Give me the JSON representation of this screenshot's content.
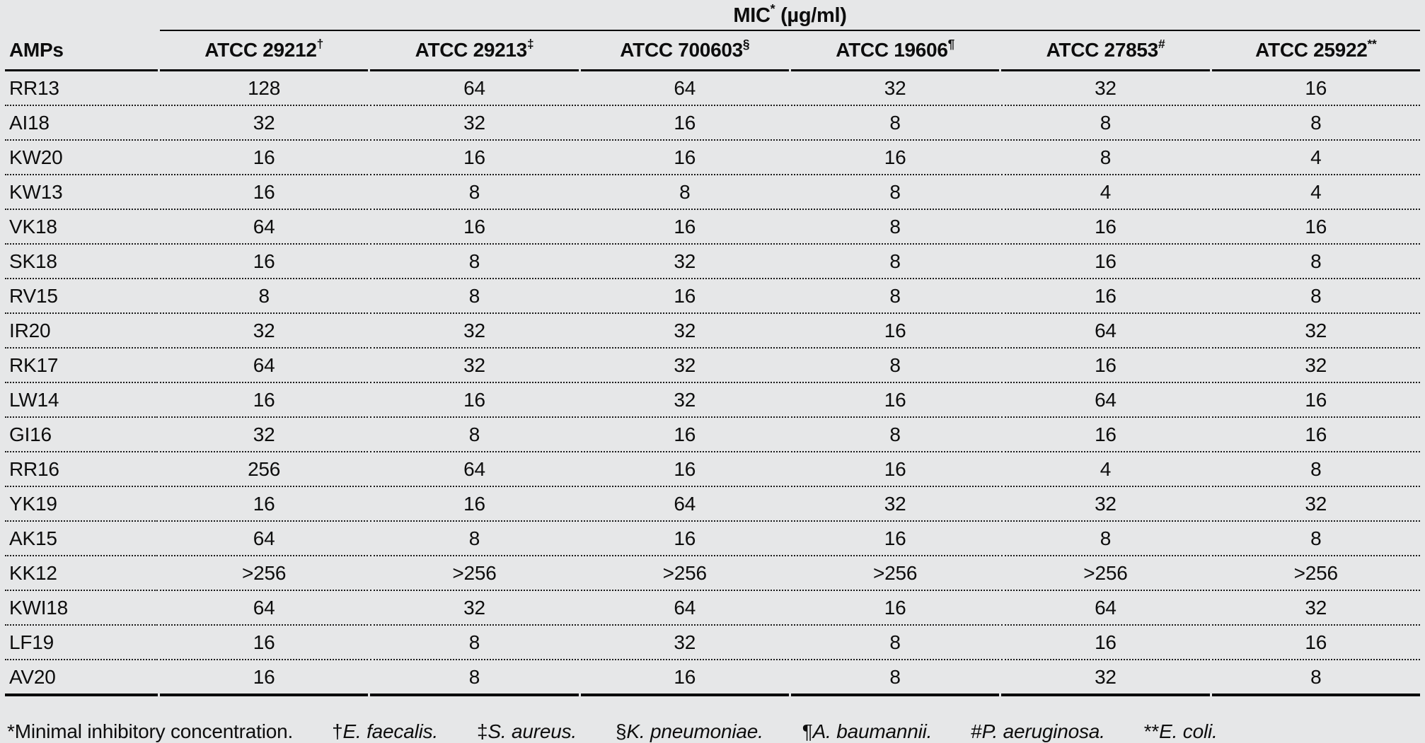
{
  "table": {
    "span_header": {
      "label": "MIC",
      "sup": "*",
      "unit": " (µg/ml)"
    },
    "row_header": "AMPs",
    "columns": [
      {
        "label": "ATCC 29212",
        "sup": "†"
      },
      {
        "label": "ATCC 29213",
        "sup": "‡"
      },
      {
        "label": "ATCC 700603",
        "sup": "§"
      },
      {
        "label": "ATCC 19606",
        "sup": "¶"
      },
      {
        "label": "ATCC 27853",
        "sup": "#"
      },
      {
        "label": "ATCC 25922",
        "sup": "**"
      }
    ],
    "rows": [
      {
        "amp": "RR13",
        "values": [
          "128",
          "64",
          "64",
          "32",
          "32",
          "16"
        ]
      },
      {
        "amp": "AI18",
        "values": [
          "32",
          "32",
          "16",
          "8",
          "8",
          "8"
        ]
      },
      {
        "amp": "KW20",
        "values": [
          "16",
          "16",
          "16",
          "16",
          "8",
          "4"
        ]
      },
      {
        "amp": "KW13",
        "values": [
          "16",
          "8",
          "8",
          "8",
          "4",
          "4"
        ]
      },
      {
        "amp": "VK18",
        "values": [
          "64",
          "16",
          "16",
          "8",
          "16",
          "16"
        ]
      },
      {
        "amp": "SK18",
        "values": [
          "16",
          "8",
          "32",
          "8",
          "16",
          "8"
        ]
      },
      {
        "amp": "RV15",
        "values": [
          "8",
          "8",
          "16",
          "8",
          "16",
          "8"
        ]
      },
      {
        "amp": "IR20",
        "values": [
          "32",
          "32",
          "32",
          "16",
          "64",
          "32"
        ]
      },
      {
        "amp": "RK17",
        "values": [
          "64",
          "32",
          "32",
          "8",
          "16",
          "32"
        ]
      },
      {
        "amp": "LW14",
        "values": [
          "16",
          "16",
          "32",
          "16",
          "64",
          "16"
        ]
      },
      {
        "amp": "GI16",
        "values": [
          "32",
          "8",
          "16",
          "8",
          "16",
          "16"
        ]
      },
      {
        "amp": "RR16",
        "values": [
          "256",
          "64",
          "16",
          "16",
          "4",
          "8"
        ]
      },
      {
        "amp": "YK19",
        "values": [
          "16",
          "16",
          "64",
          "32",
          "32",
          "32"
        ]
      },
      {
        "amp": "AK15",
        "values": [
          "64",
          "8",
          "16",
          "16",
          "8",
          "8"
        ]
      },
      {
        "amp": "KK12",
        "values": [
          ">256",
          ">256",
          ">256",
          ">256",
          ">256",
          ">256"
        ]
      },
      {
        "amp": "KWI18",
        "values": [
          "64",
          "32",
          "64",
          "16",
          "64",
          "32"
        ]
      },
      {
        "amp": "LF19",
        "values": [
          "16",
          "8",
          "32",
          "8",
          "16",
          "16"
        ]
      },
      {
        "amp": "AV20",
        "values": [
          "16",
          "8",
          "16",
          "8",
          "32",
          "8"
        ]
      }
    ]
  },
  "footnotes": [
    {
      "sym": "*",
      "text": "Minimal inhibitory concentration.",
      "italic": false
    },
    {
      "sym": "†",
      "text": "E. faecalis.",
      "italic": true
    },
    {
      "sym": "‡",
      "text": "S. aureus.",
      "italic": true
    },
    {
      "sym": "§",
      "text": "K. pneumoniae.",
      "italic": true
    },
    {
      "sym": "¶",
      "text": "A. baumannii.",
      "italic": true
    },
    {
      "sym": "#",
      "text": "P. aeruginosa.",
      "italic": true
    },
    {
      "sym": "**",
      "text": "E. coli.",
      "italic": true
    }
  ],
  "colors": {
    "background": "#e6e7e8",
    "text": "#0d0d0d"
  }
}
